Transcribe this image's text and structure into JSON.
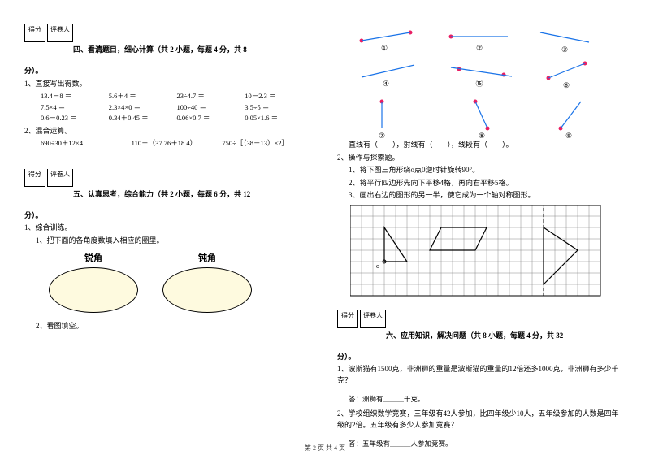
{
  "scorebox": {
    "score": "得分",
    "marker": "评卷人"
  },
  "section4": {
    "title": "四、看清题目，细心计算（共 2 小题，每题 4 分，共 8",
    "title_tail": "分）。",
    "p1": "1、直接写出得数。",
    "row1": [
      "13.4－8 ＝",
      "5.6＋4 ＝",
      "23÷4.7 ＝",
      "10－2.3 ＝"
    ],
    "row2": [
      "7.5×4 ＝",
      "2.3×4×0 ＝",
      "100÷40 ＝",
      "3.5÷5 ＝"
    ],
    "row3": [
      "0.6－0.23 ＝",
      "0.34＋0.45 ＝",
      "0.06×0.7 ＝",
      "0.05×1.6 ＝"
    ],
    "p2": "2、混合运算。",
    "row4": [
      "690÷30＋12×4",
      "110－（37.76＋18.4）",
      "750÷［（38－13）×2］"
    ]
  },
  "section5": {
    "title": "五、认真思考，综合能力（共 2 小题，每题 6 分，共 12",
    "title_tail": "分）。",
    "p1": "1、综合训练。",
    "p1_1": "1、把下面的各角度数填入相应的圈里。",
    "oval1": "锐角",
    "oval2": "钝角",
    "p2": "2、看图填空。"
  },
  "figures": {
    "labels": [
      "①",
      "②",
      "③",
      "④",
      "⑮",
      "⑥",
      "⑦",
      "⑧",
      "⑨"
    ],
    "caption": "直线有（　　），射线有（　　），线段有（　　）。"
  },
  "explore": {
    "p2": "2、操作与探索题。",
    "i1": "1、将下图三角形绕o点0逆时针旋转90°。",
    "i2": "2、将平行四边形先向下平移4格，再向右平移5格。",
    "i3": "3、画出右边的图形的另一半，使它成为一个轴对称图形。"
  },
  "section6": {
    "title": "六、应用知识，解决问题（共 8 小题，每题 4 分，共 32",
    "title_tail": "分）。",
    "q1": "1、波斯猫有1500克，非洲狮的重量是波斯猫的重量的12倍还多1000克，非洲狮有多少千克？",
    "a1": "答：洲狮有＿＿＿千克。",
    "q2": "2、学校组织数学竞赛，三年级有42人参加，比四年级少10人，五年级参加的人数是四年级的2倍。五年级有多少人参加竞赛？",
    "a2": "答：五年级有＿＿＿人参加竞赛。"
  },
  "footer": "第 2 页 共 4 页",
  "colors": {
    "dot": "#e91e63",
    "line": "#1a73e8",
    "oval_fill": "#fefadf",
    "grid": "#888888"
  },
  "grid": {
    "cols": 22,
    "rows": 8,
    "cell": 14
  }
}
